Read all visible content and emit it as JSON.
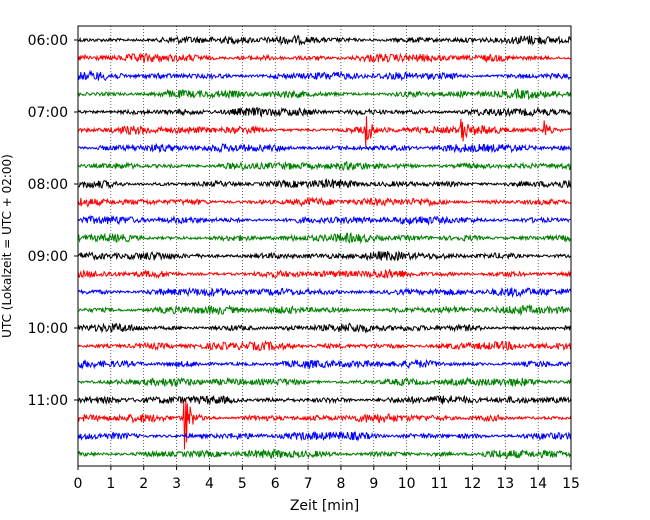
{
  "chart_data": {
    "type": "line",
    "title": "",
    "xlabel": "Zeit  [min]",
    "ylabel": "UTC (Lokalzeit = UTC + 02:00)",
    "xlim": [
      0,
      15
    ],
    "x_ticks": [
      "0",
      "1",
      "2",
      "3",
      "4",
      "5",
      "6",
      "7",
      "8",
      "9",
      "10",
      "11",
      "12",
      "13",
      "14",
      "15"
    ],
    "y_ticks": [
      "06:00",
      "07:00",
      "08:00",
      "09:00",
      "10:00",
      "11:00"
    ],
    "traces_per_hour": 4,
    "trace_minutes": 15,
    "grid": {
      "x": true,
      "style": "dotted"
    },
    "colors": [
      "#000000",
      "#ff0000",
      "#0000ff",
      "#008000"
    ],
    "traces": [
      {
        "start": "05:45",
        "color": "#000000"
      },
      {
        "start": "06:00",
        "color": "#ff0000"
      },
      {
        "start": "06:15",
        "color": "#0000ff"
      },
      {
        "start": "06:30",
        "color": "#008000"
      },
      {
        "start": "06:45",
        "color": "#000000"
      },
      {
        "start": "07:00",
        "color": "#ff0000"
      },
      {
        "start": "07:15",
        "color": "#0000ff"
      },
      {
        "start": "07:30",
        "color": "#008000"
      },
      {
        "start": "07:45",
        "color": "#000000"
      },
      {
        "start": "08:00",
        "color": "#ff0000"
      },
      {
        "start": "08:15",
        "color": "#0000ff"
      },
      {
        "start": "08:30",
        "color": "#008000"
      },
      {
        "start": "08:45",
        "color": "#000000"
      },
      {
        "start": "09:00",
        "color": "#ff0000"
      },
      {
        "start": "09:15",
        "color": "#0000ff"
      },
      {
        "start": "09:30",
        "color": "#008000"
      },
      {
        "start": "09:45",
        "color": "#000000"
      },
      {
        "start": "10:00",
        "color": "#ff0000"
      },
      {
        "start": "10:15",
        "color": "#0000ff"
      },
      {
        "start": "10:30",
        "color": "#008000"
      },
      {
        "start": "10:45",
        "color": "#000000"
      },
      {
        "start": "11:00",
        "color": "#ff0000"
      },
      {
        "start": "11:15",
        "color": "#0000ff"
      },
      {
        "start": "11:30",
        "color": "#008000"
      }
    ],
    "events": [
      {
        "trace": 5,
        "minute": 8.8,
        "amplitude": 0.85
      },
      {
        "trace": 5,
        "minute": 11.7,
        "amplitude": 0.55
      },
      {
        "trace": 5,
        "minute": 14.2,
        "amplitude": 0.55
      },
      {
        "trace": 21,
        "minute": 3.25,
        "amplitude": 1.9
      }
    ]
  }
}
